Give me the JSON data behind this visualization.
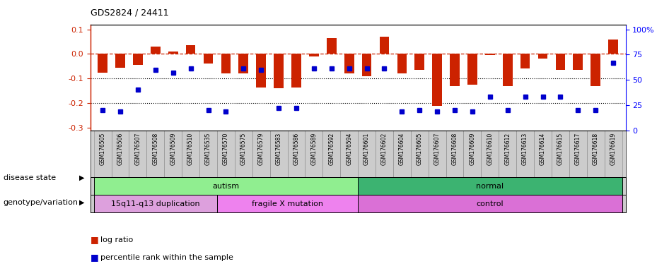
{
  "title": "GDS2824 / 24411",
  "samples": [
    "GSM176505",
    "GSM176506",
    "GSM176507",
    "GSM176508",
    "GSM176509",
    "GSM176510",
    "GSM176535",
    "GSM176570",
    "GSM176575",
    "GSM176579",
    "GSM176583",
    "GSM176586",
    "GSM176589",
    "GSM176592",
    "GSM176594",
    "GSM176601",
    "GSM176602",
    "GSM176604",
    "GSM176605",
    "GSM176607",
    "GSM176608",
    "GSM176609",
    "GSM176610",
    "GSM176612",
    "GSM176613",
    "GSM176614",
    "GSM176615",
    "GSM176617",
    "GSM176618",
    "GSM176619"
  ],
  "log_ratio": [
    -0.075,
    -0.055,
    -0.045,
    0.03,
    0.01,
    0.035,
    -0.04,
    -0.08,
    -0.08,
    -0.135,
    -0.14,
    -0.135,
    -0.01,
    0.065,
    -0.08,
    -0.09,
    0.07,
    -0.08,
    -0.065,
    -0.21,
    -0.13,
    -0.125,
    -0.005,
    -0.13,
    -0.06,
    -0.02,
    -0.065,
    -0.065,
    -0.13,
    0.06
  ],
  "percentile_rank": [
    20,
    19,
    40,
    60,
    57,
    61,
    20,
    19,
    61,
    60,
    22,
    22,
    61,
    61,
    61,
    61,
    61,
    19,
    20,
    19,
    20,
    19,
    33,
    20,
    33,
    33,
    33,
    20,
    20,
    67
  ],
  "disease_state_groups": [
    {
      "label": "autism",
      "start": 0,
      "end": 15,
      "color": "#90ee90"
    },
    {
      "label": "normal",
      "start": 15,
      "end": 30,
      "color": "#3cb371"
    }
  ],
  "genotype_groups": [
    {
      "label": "15q11-q13 duplication",
      "start": 0,
      "end": 7,
      "color": "#dda0dd"
    },
    {
      "label": "fragile X mutation",
      "start": 7,
      "end": 15,
      "color": "#ee82ee"
    },
    {
      "label": "control",
      "start": 15,
      "end": 30,
      "color": "#da70d6"
    }
  ],
  "bar_color": "#cc2200",
  "dot_color": "#0000cc",
  "zero_line_color": "#cc2200",
  "ylim_left": [
    -0.31,
    0.12
  ],
  "ylim_right": [
    0,
    105
  ],
  "yticks_left": [
    0.1,
    0.0,
    -0.1,
    -0.2,
    -0.3
  ],
  "yticks_right_vals": [
    100,
    75,
    50,
    25,
    0
  ],
  "yticks_right_labels": [
    "100%",
    "75",
    "50",
    "25",
    "0"
  ],
  "label_arrow_disease": "disease state",
  "label_arrow_geno": "genotype/variation",
  "legend_bar": "log ratio",
  "legend_dot": "percentile rank within the sample"
}
